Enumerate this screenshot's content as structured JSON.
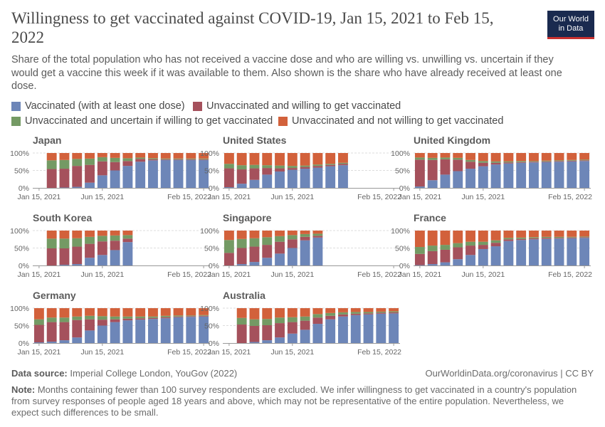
{
  "title": "Willingness to get vaccinated against COVID-19, Jan 15, 2021 to Feb 15, 2022",
  "subtitle": "Share of the total population who has not received a vaccine dose and who are willing vs. unwilling vs. uncertain if they would get a vaccine this week if it was available to them. Also shown is the share who have already received at least one dose.",
  "logo": {
    "line1": "Our World",
    "line2": "in Data"
  },
  "legend": [
    {
      "label": "Vaccinated (with at least one dose)",
      "color": "#6d86b8"
    },
    {
      "label": "Unvaccinated and willing to get vaccinated",
      "color": "#a5515c"
    },
    {
      "label": "Unvaccinated and uncertain if willing to get vaccinated",
      "color": "#749a64"
    },
    {
      "label": "Unvaccinated and not willing to get vaccinated",
      "color": "#d2613b"
    }
  ],
  "footer": {
    "source_label": "Data source:",
    "source_text": "Imperial College London, YouGov (2022)",
    "url": "OurWorldinData.org/coronavirus | CC BY",
    "note_label": "Note:",
    "note_text": "Months containing fewer than 100 survey respondents are excluded. We infer willingness to get vaccinated in a country's population from survey responses of people aged 18 years and above, which may not be representative of the entire population. Nevertheless, we expect such differences to be small."
  },
  "chart_data": {
    "type": "bar",
    "stacked": true,
    "categories": [
      "Jan 2021",
      "Feb 2021",
      "Mar 2021",
      "Apr 2021",
      "May 2021",
      "Jun 2021",
      "Jul 2021",
      "Aug 2021",
      "Sep 2021",
      "Oct 2021",
      "Nov 2021",
      "Dec 2021",
      "Jan 2022",
      "Feb 2022"
    ],
    "x_tick_labels": [
      "Jan 15, 2021",
      "Jun 15, 2021",
      "Feb 15, 2022"
    ],
    "y_ticks": [
      "0%",
      "50%",
      "100%"
    ],
    "ylim": [
      0,
      100
    ],
    "unit": "%",
    "series_order": [
      "vaccinated",
      "willing",
      "uncertain",
      "unwilling"
    ],
    "panels": [
      {
        "name": "Japan",
        "bars": [
          null,
          {
            "vaccinated": 0,
            "willing": 54,
            "uncertain": 25,
            "unwilling": 21
          },
          {
            "vaccinated": 1,
            "willing": 54,
            "uncertain": 25,
            "unwilling": 20
          },
          {
            "vaccinated": 3,
            "willing": 60,
            "uncertain": 20,
            "unwilling": 17
          },
          {
            "vaccinated": 15,
            "willing": 51,
            "uncertain": 18,
            "unwilling": 16
          },
          {
            "vaccinated": 36,
            "willing": 40,
            "uncertain": 12,
            "unwilling": 12
          },
          {
            "vaccinated": 50,
            "willing": 24,
            "uncertain": 12,
            "unwilling": 14
          },
          {
            "vaccinated": 63,
            "willing": 14,
            "uncertain": 8,
            "unwilling": 15
          },
          {
            "vaccinated": 75,
            "willing": 8,
            "uncertain": 4,
            "unwilling": 13
          },
          {
            "vaccinated": 79,
            "willing": 3,
            "uncertain": 3,
            "unwilling": 15
          },
          {
            "vaccinated": 80,
            "willing": 2,
            "uncertain": 2,
            "unwilling": 16
          },
          {
            "vaccinated": 80,
            "willing": 2,
            "uncertain": 2,
            "unwilling": 16
          },
          {
            "vaccinated": 80,
            "willing": 2,
            "uncertain": 2,
            "unwilling": 16
          },
          {
            "vaccinated": 80,
            "willing": 2,
            "uncertain": 2,
            "unwilling": 16
          }
        ]
      },
      {
        "name": "United States",
        "bars": [
          {
            "vaccinated": 2,
            "willing": 54,
            "uncertain": 13,
            "unwilling": 31
          },
          {
            "vaccinated": 12,
            "willing": 41,
            "uncertain": 12,
            "unwilling": 35
          },
          {
            "vaccinated": 23,
            "willing": 33,
            "uncertain": 10,
            "unwilling": 34
          },
          {
            "vaccinated": 38,
            "willing": 19,
            "uncertain": 8,
            "unwilling": 35
          },
          {
            "vaccinated": 47,
            "willing": 9,
            "uncertain": 8,
            "unwilling": 36
          },
          {
            "vaccinated": 52,
            "willing": 5,
            "uncertain": 6,
            "unwilling": 37
          },
          {
            "vaccinated": 55,
            "willing": 5,
            "uncertain": 4,
            "unwilling": 36
          },
          {
            "vaccinated": 58,
            "willing": 5,
            "uncertain": 4,
            "unwilling": 33
          },
          {
            "vaccinated": 62,
            "willing": 4,
            "uncertain": 3,
            "unwilling": 31
          },
          {
            "vaccinated": 65,
            "willing": 4,
            "uncertain": 3,
            "unwilling": 28
          },
          null,
          null,
          null,
          null
        ]
      },
      {
        "name": "United Kingdom",
        "bars": [
          {
            "vaccinated": 4,
            "willing": 77,
            "uncertain": 6,
            "unwilling": 13
          },
          {
            "vaccinated": 22,
            "willing": 58,
            "uncertain": 6,
            "unwilling": 14
          },
          {
            "vaccinated": 38,
            "willing": 44,
            "uncertain": 5,
            "unwilling": 13
          },
          {
            "vaccinated": 48,
            "willing": 33,
            "uncertain": 5,
            "unwilling": 14
          },
          {
            "vaccinated": 55,
            "willing": 20,
            "uncertain": 5,
            "unwilling": 20
          },
          {
            "vaccinated": 62,
            "willing": 10,
            "uncertain": 5,
            "unwilling": 23
          },
          {
            "vaccinated": 67,
            "willing": 5,
            "uncertain": 4,
            "unwilling": 24
          },
          {
            "vaccinated": 70,
            "willing": 3,
            "uncertain": 3,
            "unwilling": 24
          },
          {
            "vaccinated": 72,
            "willing": 2,
            "uncertain": 3,
            "unwilling": 23
          },
          {
            "vaccinated": 73,
            "willing": 2,
            "uncertain": 2,
            "unwilling": 23
          },
          {
            "vaccinated": 74,
            "willing": 2,
            "uncertain": 2,
            "unwilling": 22
          },
          {
            "vaccinated": 75,
            "willing": 2,
            "uncertain": 2,
            "unwilling": 21
          },
          {
            "vaccinated": 76,
            "willing": 2,
            "uncertain": 2,
            "unwilling": 20
          },
          {
            "vaccinated": 77,
            "willing": 2,
            "uncertain": 2,
            "unwilling": 19
          }
        ]
      },
      {
        "name": "South Korea",
        "bars": [
          null,
          {
            "vaccinated": 0,
            "willing": 49,
            "uncertain": 28,
            "unwilling": 23
          },
          {
            "vaccinated": 2,
            "willing": 47,
            "uncertain": 28,
            "unwilling": 23
          },
          {
            "vaccinated": 4,
            "willing": 50,
            "uncertain": 24,
            "unwilling": 22
          },
          {
            "vaccinated": 22,
            "willing": 40,
            "uncertain": 20,
            "unwilling": 18
          },
          {
            "vaccinated": 30,
            "willing": 39,
            "uncertain": 16,
            "unwilling": 15
          },
          {
            "vaccinated": 44,
            "willing": 27,
            "uncertain": 15,
            "unwilling": 14
          },
          {
            "vaccinated": 67,
            "willing": 10,
            "uncertain": 10,
            "unwilling": 13
          },
          null,
          null,
          null,
          null,
          null,
          null
        ]
      },
      {
        "name": "Singapore",
        "bars": [
          {
            "vaccinated": 0,
            "willing": 36,
            "uncertain": 37,
            "unwilling": 27
          },
          {
            "vaccinated": 4,
            "willing": 46,
            "uncertain": 26,
            "unwilling": 24
          },
          {
            "vaccinated": 10,
            "willing": 44,
            "uncertain": 24,
            "unwilling": 22
          },
          {
            "vaccinated": 22,
            "willing": 37,
            "uncertain": 22,
            "unwilling": 19
          },
          {
            "vaccinated": 34,
            "willing": 34,
            "uncertain": 16,
            "unwilling": 16
          },
          {
            "vaccinated": 50,
            "willing": 25,
            "uncertain": 12,
            "unwilling": 13
          },
          {
            "vaccinated": 72,
            "willing": 10,
            "uncertain": 8,
            "unwilling": 10
          },
          {
            "vaccinated": 80,
            "willing": 5,
            "uncertain": 6,
            "unwilling": 9
          },
          null,
          null,
          null,
          null,
          null,
          null
        ]
      },
      {
        "name": "France",
        "bars": [
          {
            "vaccinated": 1,
            "willing": 32,
            "uncertain": 20,
            "unwilling": 47
          },
          {
            "vaccinated": 4,
            "willing": 37,
            "uncertain": 16,
            "unwilling": 43
          },
          {
            "vaccinated": 9,
            "willing": 36,
            "uncertain": 14,
            "unwilling": 41
          },
          {
            "vaccinated": 18,
            "willing": 34,
            "uncertain": 12,
            "unwilling": 36
          },
          {
            "vaccinated": 30,
            "willing": 27,
            "uncertain": 11,
            "unwilling": 32
          },
          {
            "vaccinated": 47,
            "willing": 12,
            "uncertain": 9,
            "unwilling": 32
          },
          {
            "vaccinated": 55,
            "willing": 10,
            "uncertain": 7,
            "unwilling": 28
          },
          {
            "vaccinated": 70,
            "willing": 5,
            "uncertain": 4,
            "unwilling": 21
          },
          {
            "vaccinated": 73,
            "willing": 3,
            "uncertain": 4,
            "unwilling": 20
          },
          {
            "vaccinated": 75,
            "willing": 3,
            "uncertain": 3,
            "unwilling": 19
          },
          {
            "vaccinated": 76,
            "willing": 3,
            "uncertain": 3,
            "unwilling": 18
          },
          {
            "vaccinated": 77,
            "willing": 2,
            "uncertain": 3,
            "unwilling": 18
          },
          {
            "vaccinated": 78,
            "willing": 2,
            "uncertain": 2,
            "unwilling": 18
          },
          {
            "vaccinated": 79,
            "willing": 2,
            "uncertain": 2,
            "unwilling": 17
          }
        ]
      },
      {
        "name": "Germany",
        "bars": [
          {
            "vaccinated": 2,
            "willing": 50,
            "uncertain": 16,
            "unwilling": 32
          },
          {
            "vaccinated": 4,
            "willing": 56,
            "uncertain": 13,
            "unwilling": 27
          },
          {
            "vaccinated": 8,
            "willing": 52,
            "uncertain": 13,
            "unwilling": 27
          },
          {
            "vaccinated": 16,
            "willing": 50,
            "uncertain": 10,
            "unwilling": 24
          },
          {
            "vaccinated": 36,
            "willing": 32,
            "uncertain": 10,
            "unwilling": 22
          },
          {
            "vaccinated": 50,
            "willing": 17,
            "uncertain": 10,
            "unwilling": 23
          },
          {
            "vaccinated": 60,
            "willing": 8,
            "uncertain": 8,
            "unwilling": 24
          },
          {
            "vaccinated": 65,
            "willing": 5,
            "uncertain": 6,
            "unwilling": 24
          },
          {
            "vaccinated": 67,
            "willing": 4,
            "uncertain": 5,
            "unwilling": 24
          },
          {
            "vaccinated": 69,
            "willing": 3,
            "uncertain": 4,
            "unwilling": 24
          },
          {
            "vaccinated": 71,
            "willing": 3,
            "uncertain": 4,
            "unwilling": 22
          },
          {
            "vaccinated": 74,
            "willing": 2,
            "uncertain": 3,
            "unwilling": 21
          },
          {
            "vaccinated": 75,
            "willing": 2,
            "uncertain": 2,
            "unwilling": 21
          },
          {
            "vaccinated": 76,
            "willing": 2,
            "uncertain": 2,
            "unwilling": 20
          }
        ]
      },
      {
        "name": "Australia",
        "bars": [
          null,
          {
            "vaccinated": 0,
            "willing": 53,
            "uncertain": 19,
            "unwilling": 28
          },
          {
            "vaccinated": 3,
            "willing": 46,
            "uncertain": 19,
            "unwilling": 32
          },
          {
            "vaccinated": 8,
            "willing": 43,
            "uncertain": 18,
            "unwilling": 31
          },
          {
            "vaccinated": 16,
            "willing": 41,
            "uncertain": 16,
            "unwilling": 27
          },
          {
            "vaccinated": 27,
            "willing": 33,
            "uncertain": 14,
            "unwilling": 26
          },
          {
            "vaccinated": 38,
            "willing": 26,
            "uncertain": 12,
            "unwilling": 24
          },
          {
            "vaccinated": 55,
            "willing": 18,
            "uncertain": 10,
            "unwilling": 17
          },
          {
            "vaccinated": 68,
            "willing": 10,
            "uncertain": 8,
            "unwilling": 14
          },
          {
            "vaccinated": 76,
            "willing": 6,
            "uncertain": 6,
            "unwilling": 12
          },
          {
            "vaccinated": 80,
            "willing": 4,
            "uncertain": 5,
            "unwilling": 11
          },
          {
            "vaccinated": 82,
            "willing": 3,
            "uncertain": 4,
            "unwilling": 11
          },
          {
            "vaccinated": 84,
            "willing": 3,
            "uncertain": 3,
            "unwilling": 10
          },
          {
            "vaccinated": 85,
            "willing": 3,
            "uncertain": 3,
            "unwilling": 9
          }
        ]
      }
    ]
  }
}
